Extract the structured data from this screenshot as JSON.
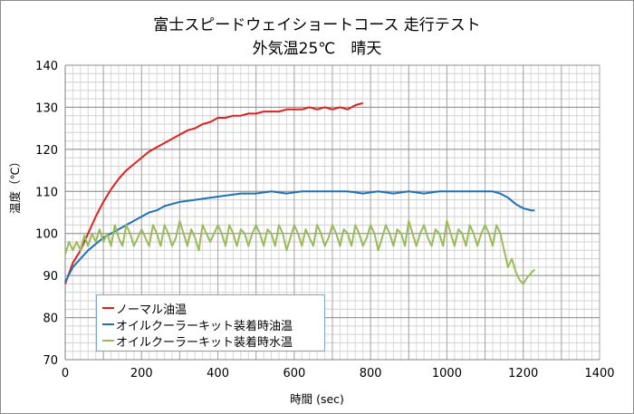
{
  "chart_data": {
    "type": "line",
    "title": "富士スピードウェイショートコース 走行テスト",
    "subtitle": "外気温25℃　晴天",
    "xlabel": "時間 (sec)",
    "ylabel": "温度（℃）",
    "xlim": [
      0,
      1400
    ],
    "ylim": [
      70,
      140
    ],
    "x_ticks": [
      0,
      200,
      400,
      600,
      800,
      1000,
      1200,
      1400
    ],
    "y_ticks": [
      70,
      80,
      90,
      100,
      110,
      120,
      130,
      140
    ],
    "grid": {
      "major": true,
      "minor": true,
      "x_minor_step": 20,
      "y_minor_step": 2
    },
    "legend_position": "inside-lower-left",
    "series": [
      {
        "name": "ノーマル油温",
        "color": "#e02020",
        "x": [
          0,
          20,
          40,
          60,
          80,
          100,
          120,
          140,
          160,
          180,
          200,
          220,
          240,
          260,
          280,
          300,
          320,
          340,
          360,
          380,
          400,
          420,
          440,
          460,
          480,
          500,
          520,
          540,
          560,
          580,
          600,
          620,
          640,
          660,
          680,
          700,
          720,
          740,
          760,
          780
        ],
        "y": [
          88,
          93,
          96,
          100,
          104,
          107.5,
          110.5,
          113,
          115,
          116.5,
          118,
          119.5,
          120.5,
          121.5,
          122.5,
          123.5,
          124.5,
          125,
          126,
          126.5,
          127.5,
          127.5,
          128,
          128,
          128.5,
          128.5,
          129,
          129,
          129,
          129.5,
          129.5,
          129.5,
          130,
          129.5,
          130,
          129.5,
          130,
          129.5,
          130.5,
          131
        ]
      },
      {
        "name": "オイルクーラーキット装着時油温",
        "color": "#1f72b8",
        "x": [
          0,
          20,
          40,
          60,
          80,
          100,
          120,
          140,
          160,
          180,
          200,
          220,
          240,
          260,
          280,
          300,
          340,
          380,
          420,
          460,
          500,
          540,
          580,
          620,
          660,
          700,
          740,
          780,
          820,
          860,
          900,
          940,
          980,
          1020,
          1060,
          1100,
          1120,
          1140,
          1160,
          1180,
          1200,
          1220,
          1230
        ],
        "y": [
          88.5,
          92,
          94,
          96,
          97.5,
          99,
          100,
          101,
          102,
          103,
          104,
          105,
          105.5,
          106.5,
          107,
          107.5,
          108,
          108.5,
          109,
          109.5,
          109.5,
          110,
          109.5,
          110,
          110,
          110,
          110,
          109.5,
          110,
          109.5,
          110,
          109.5,
          110,
          110,
          110,
          110,
          110,
          109.5,
          108.5,
          107,
          106,
          105.5,
          105.5
        ]
      },
      {
        "name": "オイルクーラーキット装着時水温",
        "color": "#9bbb59",
        "x": [
          0,
          10,
          20,
          30,
          40,
          50,
          60,
          70,
          80,
          90,
          100,
          110,
          120,
          130,
          140,
          150,
          160,
          170,
          180,
          190,
          200,
          210,
          220,
          230,
          240,
          250,
          260,
          270,
          280,
          290,
          300,
          310,
          320,
          330,
          340,
          350,
          360,
          370,
          380,
          390,
          400,
          410,
          420,
          430,
          440,
          450,
          460,
          470,
          480,
          490,
          500,
          510,
          520,
          530,
          540,
          550,
          560,
          570,
          580,
          590,
          600,
          610,
          620,
          630,
          640,
          650,
          660,
          670,
          680,
          690,
          700,
          710,
          720,
          730,
          740,
          750,
          760,
          770,
          780,
          790,
          800,
          810,
          820,
          830,
          840,
          850,
          860,
          870,
          880,
          890,
          900,
          910,
          920,
          930,
          940,
          950,
          960,
          970,
          980,
          990,
          1000,
          1010,
          1020,
          1030,
          1040,
          1050,
          1060,
          1070,
          1080,
          1090,
          1100,
          1110,
          1120,
          1130,
          1140,
          1150,
          1160,
          1170,
          1180,
          1190,
          1200,
          1210,
          1220,
          1230
        ],
        "y": [
          95,
          98,
          96,
          98,
          96,
          99.5,
          97,
          100,
          98,
          101,
          98,
          100,
          97,
          102,
          99,
          97,
          102,
          100,
          97,
          99,
          101,
          99,
          97,
          102,
          100,
          97,
          102,
          100,
          97,
          99,
          103,
          100,
          97,
          101,
          99,
          96,
          102,
          100,
          98,
          100,
          102,
          100,
          97,
          102,
          100,
          97,
          101,
          100,
          97,
          100,
          102,
          100,
          97,
          101,
          100,
          97,
          102,
          100,
          96,
          99,
          102,
          100,
          97,
          101,
          99,
          97,
          102,
          100,
          97,
          99,
          102,
          100,
          97,
          101,
          100,
          97,
          102,
          100,
          97,
          99,
          102,
          100,
          96,
          99,
          102,
          100,
          97,
          101,
          100,
          97,
          103,
          100,
          97,
          100,
          102,
          99,
          97,
          101,
          100,
          97,
          103,
          100,
          97,
          101,
          100,
          97,
          102,
          100,
          97,
          100,
          102,
          100,
          97,
          102,
          100,
          96,
          92,
          94,
          91,
          89,
          88,
          89.5,
          90.5,
          91.5
        ]
      }
    ]
  },
  "legend": {
    "items": [
      {
        "label": "ノーマル油温",
        "color": "#e02020"
      },
      {
        "label": "オイルクーラーキット装着時油温",
        "color": "#1f72b8"
      },
      {
        "label": "オイルクーラーキット装着時水温",
        "color": "#9bbb59"
      }
    ]
  }
}
